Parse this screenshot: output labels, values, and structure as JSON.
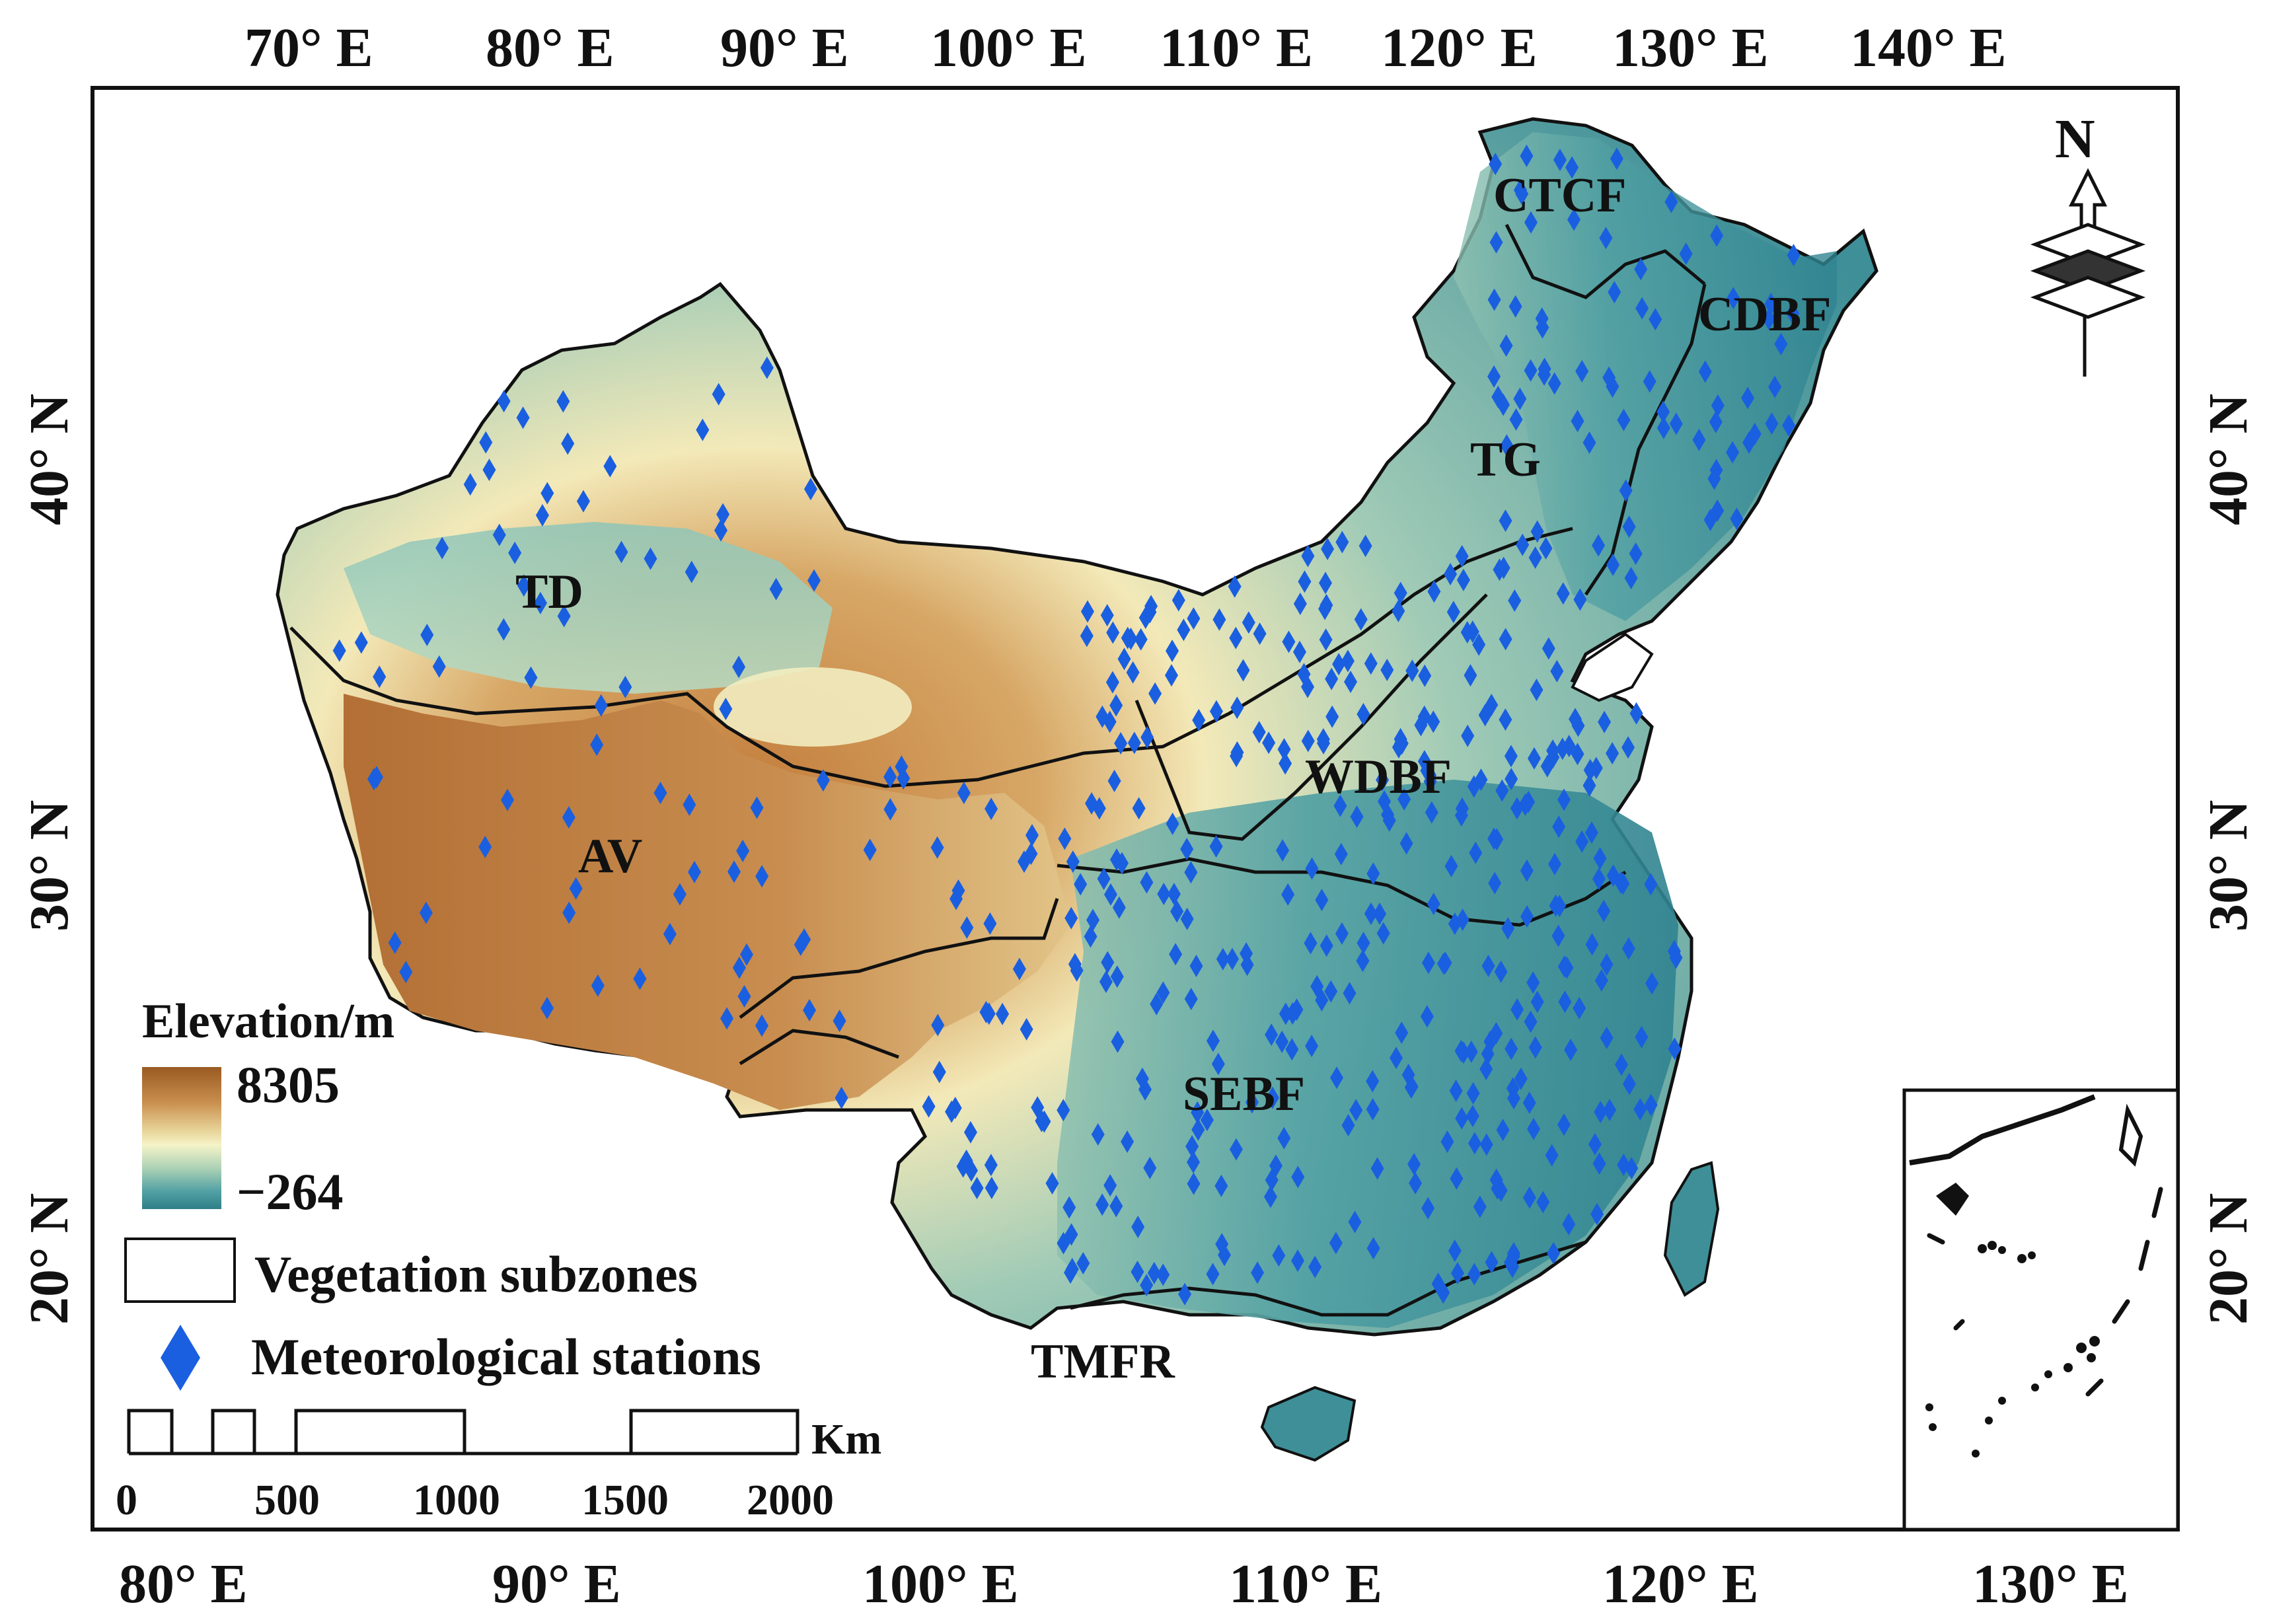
{
  "top_lon_labels": [
    "70° E",
    "80° E",
    "90° E",
    "100° E",
    "110° E",
    "120° E",
    "130° E",
    "140° E"
  ],
  "bottom_lon_labels": [
    "80° E",
    "90° E",
    "100° E",
    "110° E",
    "120° E",
    "130° E"
  ],
  "left_lat_labels": [
    "40° N",
    "30° N",
    "20° N"
  ],
  "right_lat_labels": [
    "40° N",
    "30° N",
    "20° N"
  ],
  "zone_labels": {
    "ctcf": "CTCF",
    "cdbf": "CDBF",
    "tg": "TG",
    "td": "TD",
    "wdbf": "WDBF",
    "av": "AV",
    "sebf": "SEBF",
    "tmfr": "TMFR"
  },
  "legend": {
    "elevation_title": "Elevation/m",
    "elevation_max": "8305",
    "elevation_min": "−264",
    "subzones_label": "Vegetation subzones",
    "stations_label": "Meteorological stations",
    "elevation_colors": [
      "#9a5a22",
      "#c98f4e",
      "#e8d59a",
      "#f5f3c8",
      "#a8d0b4",
      "#4f9fa3",
      "#2f7f88"
    ],
    "station_color": "#1a5fe0"
  },
  "scale_bar": {
    "unit": "Km",
    "labels": [
      "0",
      "500",
      "1000",
      "1500",
      "2000"
    ]
  },
  "north_arrow": {
    "letter": "N"
  }
}
